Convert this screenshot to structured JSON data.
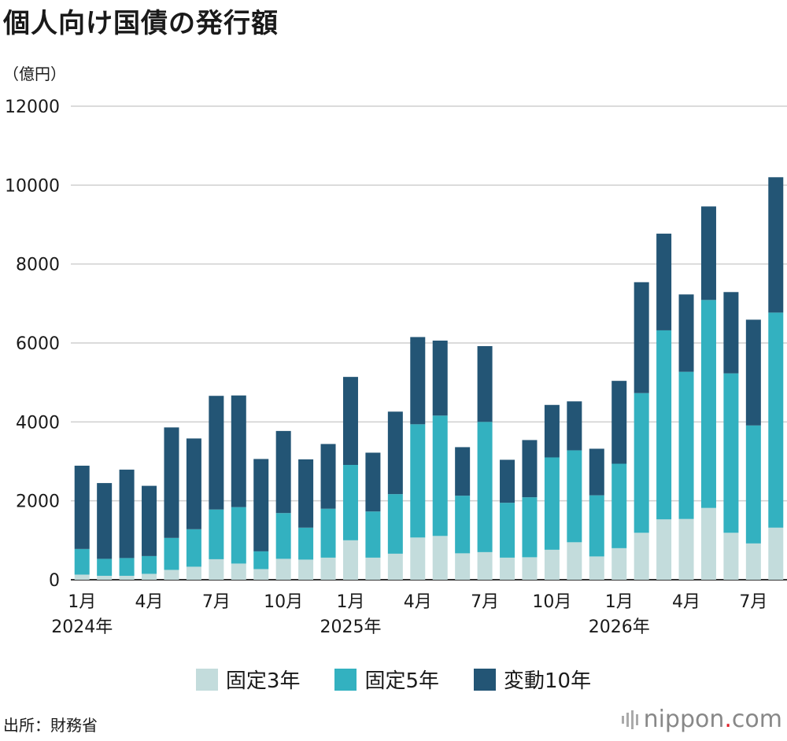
{
  "title": "個人向け国債の発行額",
  "unit_label": "（億円）",
  "source": "出所：財務省",
  "logo": {
    "before": "nippon",
    "dot": ".",
    "after": "com"
  },
  "chart_data": {
    "type": "bar",
    "stacked": true,
    "ylim": [
      0,
      12000
    ],
    "yticks": [
      0,
      2000,
      4000,
      6000,
      8000,
      10000,
      12000
    ],
    "grid": true,
    "legend_position": "bottom",
    "categories": [
      "2024-01",
      "2024-02",
      "2024-03",
      "2024-04",
      "2024-05",
      "2024-06",
      "2024-07",
      "2024-08",
      "2024-09",
      "2024-10",
      "2024-11",
      "2024-12",
      "2025-01",
      "2025-02",
      "2025-03",
      "2025-04",
      "2025-05",
      "2025-06",
      "2025-07",
      "2025-08",
      "2025-09",
      "2025-10",
      "2025-11",
      "2025-12",
      "2026-01",
      "2026-02",
      "2026-03",
      "2026-04",
      "2026-05",
      "2026-06",
      "2026-07",
      "2026-08"
    ],
    "tick_labels": [
      {
        "index": 0,
        "month": "1月",
        "year": "2024年"
      },
      {
        "index": 3,
        "month": "4月"
      },
      {
        "index": 6,
        "month": "7月"
      },
      {
        "index": 9,
        "month": "10月"
      },
      {
        "index": 12,
        "month": "1月",
        "year": "2025年"
      },
      {
        "index": 15,
        "month": "4月"
      },
      {
        "index": 18,
        "month": "7月"
      },
      {
        "index": 21,
        "month": "10月"
      },
      {
        "index": 24,
        "month": "1月",
        "year": "2026年"
      },
      {
        "index": 27,
        "month": "4月"
      },
      {
        "index": 30,
        "month": "7月"
      }
    ],
    "series": [
      {
        "name": "固定3年",
        "color": "#c3dcdc",
        "values": [
          130,
          100,
          100,
          150,
          250,
          330,
          520,
          410,
          270,
          530,
          510,
          560,
          1000,
          560,
          660,
          1070,
          1110,
          670,
          700,
          560,
          570,
          760,
          950,
          590,
          800,
          1190,
          1530,
          1540,
          1820,
          1190,
          920,
          1320
        ]
      },
      {
        "name": "固定5年",
        "color": "#33b1c0",
        "values": [
          650,
          430,
          450,
          450,
          810,
          950,
          1260,
          1430,
          450,
          1160,
          810,
          1240,
          1910,
          1170,
          1510,
          2870,
          3050,
          1460,
          3300,
          1390,
          1520,
          2340,
          2330,
          1550,
          2140,
          3540,
          4790,
          3730,
          5270,
          4040,
          2990,
          5450
        ]
      },
      {
        "name": "変動10年",
        "color": "#235575",
        "values": [
          2110,
          1920,
          2240,
          1780,
          2800,
          2300,
          2880,
          2830,
          2340,
          2080,
          1730,
          1640,
          2230,
          1490,
          2090,
          2210,
          1900,
          1230,
          1920,
          1090,
          1450,
          1330,
          1240,
          1180,
          2100,
          2810,
          2450,
          1960,
          2370,
          2060,
          2680,
          3430
        ]
      }
    ]
  }
}
